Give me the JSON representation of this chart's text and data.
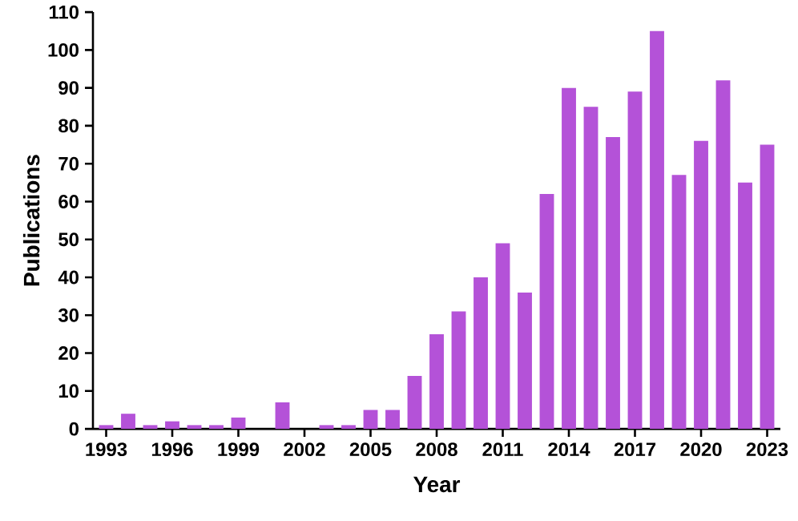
{
  "chart_data": {
    "type": "bar",
    "xlabel": "Year",
    "ylabel": "Publications",
    "color": "#b452d8",
    "x": [
      1993,
      1994,
      1995,
      1996,
      1997,
      1998,
      1999,
      2000,
      2001,
      2002,
      2003,
      2004,
      2005,
      2006,
      2007,
      2008,
      2009,
      2010,
      2011,
      2012,
      2013,
      2014,
      2015,
      2016,
      2017,
      2018,
      2019,
      2020,
      2021,
      2022,
      2023
    ],
    "values": [
      1,
      4,
      1,
      2,
      1,
      1,
      3,
      0,
      7,
      0,
      1,
      1,
      5,
      5,
      14,
      25,
      31,
      40,
      49,
      36,
      62,
      90,
      85,
      77,
      89,
      105,
      67,
      76,
      92,
      65,
      75
    ],
    "xlim": [
      1992.4,
      2023.6
    ],
    "xticks": [
      1993,
      1996,
      1999,
      2002,
      2005,
      2008,
      2011,
      2014,
      2017,
      2020,
      2023
    ],
    "ylim": [
      0,
      110
    ],
    "yticks": [
      0,
      10,
      20,
      30,
      40,
      50,
      60,
      70,
      80,
      90,
      100,
      110
    ],
    "grid": false
  }
}
